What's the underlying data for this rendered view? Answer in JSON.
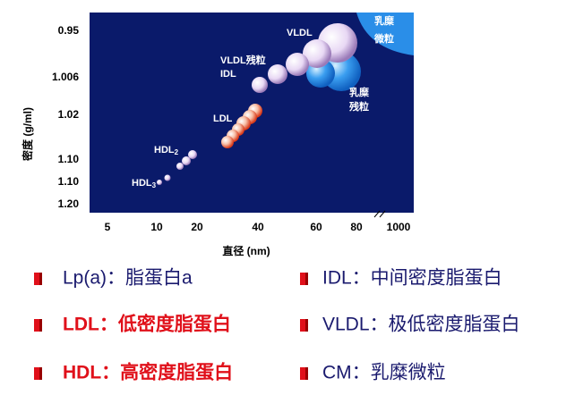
{
  "figure": {
    "y_axis_title": "密度 (g/ml)",
    "x_axis_title": "直径 (nm)",
    "y_ticks": [
      "0.95",
      "1.006",
      "1.02",
      "1.10",
      "1.10",
      "1.20"
    ],
    "x_ticks": [
      "5",
      "10",
      "20",
      "40",
      "60",
      "80",
      "1000"
    ],
    "labels": {
      "vldl": "VLDL",
      "vldl_remnant": "VLDL残粒",
      "idl": "IDL",
      "ldl": "LDL",
      "hdl2": "HDL",
      "hdl2_sub": "2",
      "hdl3": "HDL",
      "hdl3_sub": "3",
      "chylomicron_1": "乳糜",
      "chylomicron_2": "微粒",
      "chylo_remnant_1": "乳糜",
      "chylo_remnant_2": "残粒"
    }
  },
  "legend": {
    "items": [
      {
        "text": "Lp(a)：脂蛋白a"
      },
      {
        "text": "IDL：中间密度脂蛋白"
      },
      {
        "text": "LDL：低密度脂蛋白"
      },
      {
        "text": "VLDL：极低密度脂蛋白"
      },
      {
        "text": "HDL：高密度脂蛋白"
      },
      {
        "text": "CM：乳糜微粒"
      }
    ]
  }
}
